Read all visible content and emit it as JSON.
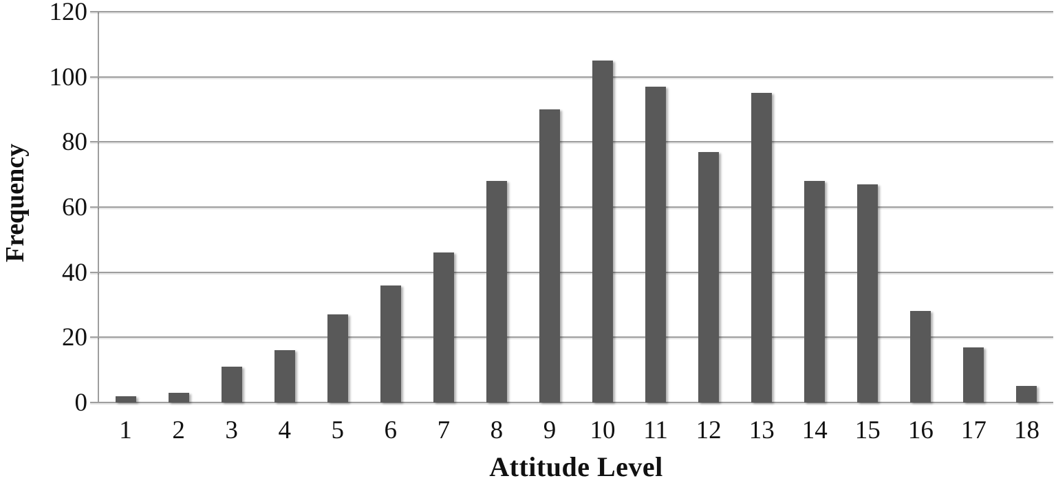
{
  "chart_data": {
    "type": "bar",
    "title": "",
    "xlabel": "Attitude Level",
    "ylabel": "Frequency",
    "categories": [
      "1",
      "2",
      "3",
      "4",
      "5",
      "6",
      "7",
      "8",
      "9",
      "10",
      "11",
      "12",
      "13",
      "14",
      "15",
      "16",
      "17",
      "18"
    ],
    "values": [
      2,
      3,
      11,
      16,
      27,
      36,
      46,
      68,
      90,
      105,
      97,
      77,
      95,
      68,
      67,
      28,
      17,
      5
    ],
    "ylim": [
      0,
      120
    ],
    "y_ticks": [
      0,
      20,
      40,
      60,
      80,
      100,
      120
    ],
    "grid": "horizontal",
    "legend": "none",
    "bar_color": "#595959",
    "gridline_color": "#9e9e9e",
    "axis_color": "#9e9e9e",
    "text_color": "#111111",
    "background": "#ffffff"
  }
}
